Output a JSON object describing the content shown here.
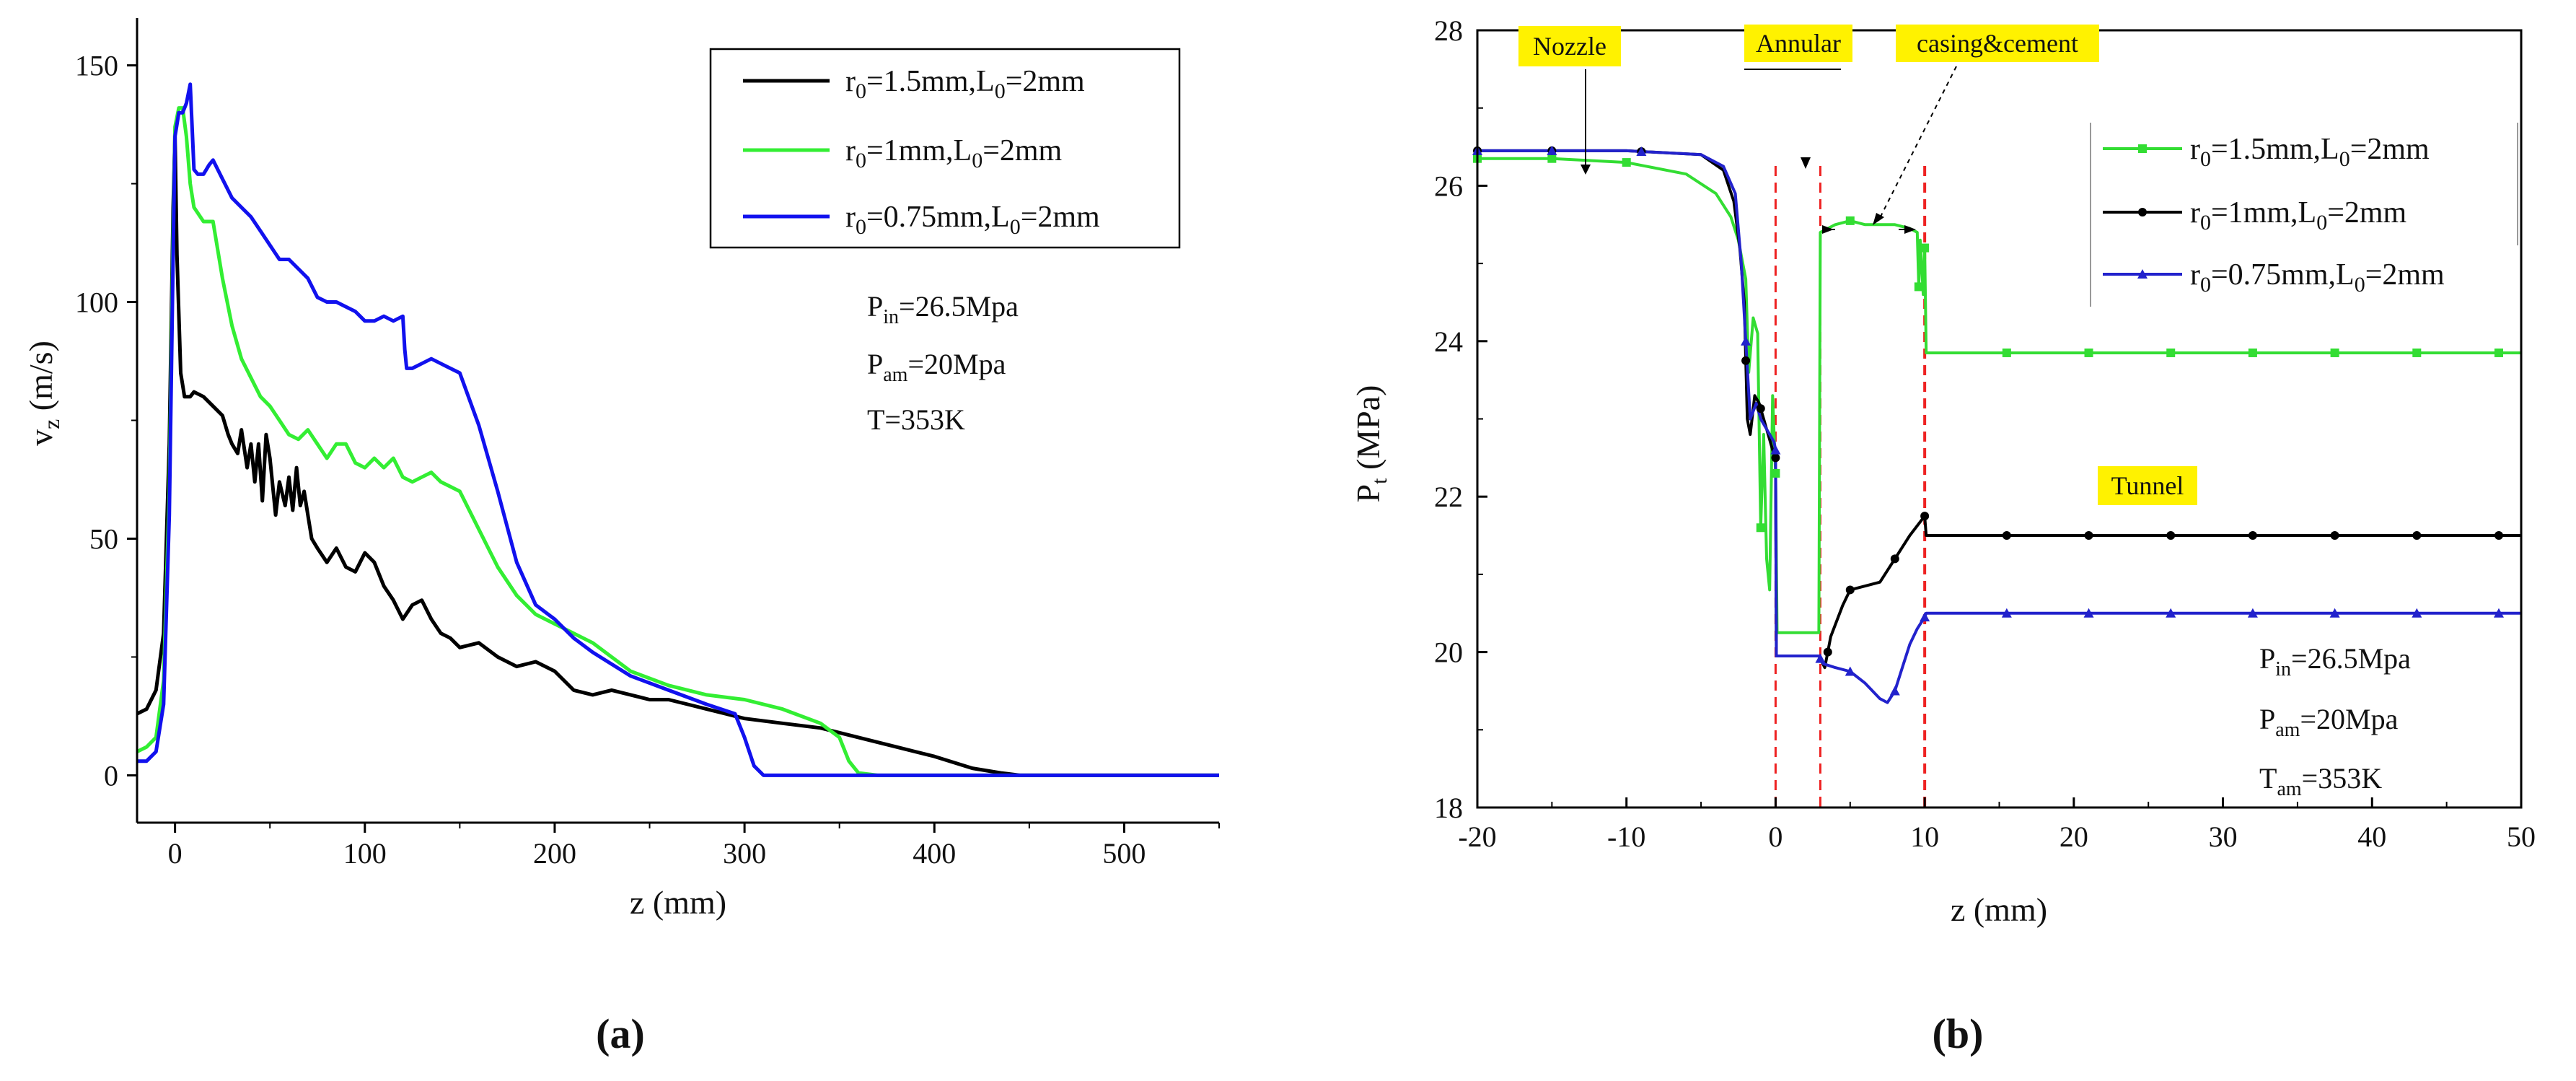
{
  "chart_data": [
    {
      "id": "a",
      "type": "line",
      "caption": "(a)",
      "xlabel": "z (mm)",
      "ylabel_main": "v",
      "ylabel_sub": "z",
      "ylabel_unit": " (m/s)",
      "xlim": [
        -20,
        550
      ],
      "ylim": [
        -10,
        160
      ],
      "xticks": [
        0,
        100,
        200,
        300,
        400,
        500
      ],
      "yticks": [
        0,
        50,
        100,
        150
      ],
      "legend_position": "top-right",
      "series": [
        {
          "name": "r0=1.5mm,L0=2mm",
          "color": "#000000",
          "legend": {
            "main": "r",
            "sub1": "0",
            "mid": "=1.5mm,L",
            "sub2": "0",
            "tail": "=2mm"
          },
          "x": [
            -20,
            -15,
            -10,
            -6,
            -3,
            -1,
            0,
            1,
            3,
            5,
            8,
            10,
            15,
            20,
            25,
            28,
            30,
            33,
            35,
            38,
            40,
            42,
            44,
            46,
            48,
            50,
            53,
            55,
            58,
            60,
            62,
            64,
            66,
            68,
            70,
            72,
            75,
            80,
            85,
            90,
            95,
            100,
            105,
            110,
            115,
            120,
            125,
            130,
            135,
            140,
            145,
            150,
            160,
            170,
            180,
            190,
            200,
            210,
            220,
            230,
            240,
            250,
            260,
            270,
            280,
            290,
            300,
            320,
            340,
            360,
            380,
            400,
            420,
            435,
            445,
            455,
            480,
            520,
            550
          ],
          "y": [
            13,
            14,
            18,
            30,
            70,
            120,
            135,
            110,
            85,
            80,
            80,
            81,
            80,
            78,
            76,
            72,
            70,
            68,
            73,
            65,
            70,
            62,
            70,
            58,
            72,
            67,
            55,
            62,
            57,
            63,
            56,
            65,
            57,
            60,
            55,
            50,
            48,
            45,
            48,
            44,
            43,
            47,
            45,
            40,
            37,
            33,
            36,
            37,
            33,
            30,
            29,
            27,
            28,
            25,
            23,
            24,
            22,
            18,
            17,
            18,
            17,
            16,
            16,
            15,
            14,
            13,
            12,
            11,
            10,
            8,
            6,
            4,
            1.5,
            0.5,
            0,
            0,
            0,
            0,
            0
          ]
        },
        {
          "name": "r0=1mm,L0=2mm",
          "color": "#33EE33",
          "legend": {
            "main": "r",
            "sub1": "0",
            "mid": "=1mm,L",
            "sub2": "0",
            "tail": "=2mm"
          },
          "x": [
            -20,
            -15,
            -10,
            -6,
            -3,
            -1,
            0,
            2,
            4,
            6,
            8,
            10,
            15,
            20,
            25,
            30,
            35,
            40,
            45,
            50,
            55,
            60,
            65,
            70,
            75,
            80,
            85,
            90,
            95,
            100,
            105,
            110,
            115,
            120,
            125,
            130,
            135,
            140,
            145,
            150,
            160,
            170,
            180,
            190,
            200,
            220,
            240,
            260,
            280,
            300,
            320,
            340,
            350,
            355,
            360,
            370,
            400,
            450,
            500,
            550
          ],
          "y": [
            5,
            6,
            8,
            20,
            60,
            115,
            137,
            141,
            141,
            135,
            125,
            120,
            117,
            117,
            105,
            95,
            88,
            84,
            80,
            78,
            75,
            72,
            71,
            73,
            70,
            67,
            70,
            70,
            66,
            65,
            67,
            65,
            67,
            63,
            62,
            63,
            64,
            62,
            61,
            60,
            52,
            44,
            38,
            34,
            32,
            28,
            22,
            19,
            17,
            16,
            14,
            11,
            8,
            3,
            0.5,
            0,
            0,
            0,
            0,
            0
          ]
        },
        {
          "name": "r0=0.75mm,L0=2mm",
          "color": "#1111EE",
          "legend": {
            "main": "r",
            "sub1": "0",
            "mid": "=0.75mm,L",
            "sub2": "0",
            "tail": "=2mm"
          },
          "x": [
            -20,
            -15,
            -10,
            -6,
            -3,
            -1,
            0,
            2,
            4,
            6,
            8,
            10,
            12,
            15,
            18,
            20,
            25,
            30,
            35,
            40,
            45,
            50,
            55,
            60,
            65,
            70,
            75,
            80,
            85,
            90,
            95,
            100,
            105,
            110,
            115,
            120,
            121,
            122,
            125,
            130,
            135,
            140,
            145,
            150,
            160,
            170,
            180,
            190,
            200,
            210,
            220,
            240,
            260,
            280,
            295,
            300,
            305,
            310,
            330,
            400,
            500,
            550
          ],
          "y": [
            3,
            3,
            5,
            15,
            55,
            110,
            135,
            140,
            140,
            142,
            146,
            128,
            127,
            127,
            129,
            130,
            126,
            122,
            120,
            118,
            115,
            112,
            109,
            109,
            107,
            105,
            101,
            100,
            100,
            99,
            98,
            96,
            96,
            97,
            96,
            97,
            90,
            86,
            86,
            87,
            88,
            87,
            86,
            85,
            74,
            60,
            45,
            36,
            33,
            29,
            26,
            21,
            18,
            15,
            13,
            8,
            2,
            0,
            0,
            0,
            0,
            0
          ]
        }
      ],
      "annotations": [
        {
          "main": "P",
          "sub": "in",
          "tail": "=26.5Mpa"
        },
        {
          "main": "P",
          "sub": "am",
          "tail": "=20Mpa"
        },
        {
          "main": "T=353K",
          "sub": "",
          "tail": ""
        }
      ]
    },
    {
      "id": "b",
      "type": "line",
      "caption": "(b)",
      "xlabel": "z (mm)",
      "ylabel_main": "P",
      "ylabel_sub": "t",
      "ylabel_unit": " (MPa)",
      "xlim": [
        -20,
        50
      ],
      "ylim": [
        18,
        28
      ],
      "xticks": [
        -20,
        -10,
        0,
        10,
        20,
        30,
        40,
        50
      ],
      "yticks": [
        18,
        20,
        22,
        24,
        26,
        28
      ],
      "legend_position": "top-right",
      "vlines": [
        0,
        3,
        10
      ],
      "series": [
        {
          "name": "r0=1.5mm,L0=2mm",
          "color": "#33DD33",
          "marker": "square",
          "legend": {
            "main": "r",
            "sub1": "0",
            "mid": "=1.5mm,L",
            "sub2": "0",
            "tail": "=2mm"
          },
          "x": [
            -20,
            -15,
            -10,
            -6,
            -4,
            -3,
            -2.5,
            -2,
            -1.8,
            -1.5,
            -1.2,
            -1,
            -0.8,
            -0.6,
            -0.4,
            -0.2,
            0,
            0.1,
            1,
            2,
            2.9,
            3,
            4,
            5,
            6,
            7,
            8,
            9,
            9.5,
            9.6,
            9.7,
            9.9,
            10,
            10.1,
            15,
            20,
            30,
            40,
            50
          ],
          "y": [
            26.35,
            26.35,
            26.3,
            26.15,
            25.9,
            25.6,
            25.3,
            24.8,
            23.6,
            24.3,
            24.1,
            21.6,
            22.8,
            21.2,
            20.8,
            23.3,
            22.3,
            20.25,
            20.25,
            20.25,
            20.25,
            25.4,
            25.5,
            25.55,
            25.5,
            25.5,
            25.5,
            25.45,
            25.4,
            24.7,
            25.3,
            24.6,
            25.2,
            23.85,
            23.85,
            23.85,
            23.85,
            23.85,
            23.85
          ],
          "marker_x": [
            -20,
            -15,
            -10,
            -1,
            0,
            5,
            9.6,
            10,
            15.5,
            21,
            26.5,
            32,
            37.5,
            43,
            48.5
          ]
        },
        {
          "name": "r0=1mm,L0=2mm",
          "color": "#000000",
          "marker": "circle",
          "legend": {
            "main": "r",
            "sub1": "0",
            "mid": "=1mm,L",
            "sub2": "0",
            "tail": "=2mm"
          },
          "x": [
            -20,
            -15,
            -10,
            -5,
            -3.5,
            -2.8,
            -2.4,
            -2.1,
            -1.9,
            -1.7,
            -1.4,
            -1.1,
            -0.8,
            -0.5,
            -0.2,
            0,
            0.05,
            1,
            2.9,
            3.3,
            3.7,
            4.5,
            5,
            6,
            7,
            8,
            9,
            10,
            10.1,
            15,
            20,
            30,
            40,
            50
          ],
          "y": [
            26.45,
            26.45,
            26.45,
            26.4,
            26.2,
            25.8,
            25.2,
            24.5,
            23.0,
            22.8,
            23.3,
            23.2,
            23.0,
            22.8,
            22.6,
            22.5,
            19.95,
            19.95,
            19.95,
            19.8,
            20.2,
            20.6,
            20.8,
            20.85,
            20.9,
            21.2,
            21.5,
            21.75,
            21.5,
            21.5,
            21.5,
            21.5,
            21.5,
            21.5
          ],
          "marker_x": [
            -20,
            -15,
            -9,
            -2,
            -1,
            0,
            3.5,
            5,
            8,
            10,
            15.5,
            21,
            26.5,
            32,
            37.5,
            43,
            48.5
          ]
        },
        {
          "name": "r0=0.75mm,L0=2mm",
          "color": "#2222CC",
          "marker": "triangle",
          "legend": {
            "main": "r",
            "sub1": "0",
            "mid": "=0.75mm,L",
            "sub2": "0",
            "tail": "=2mm"
          },
          "x": [
            -20,
            -15,
            -10,
            -5,
            -3.5,
            -2.7,
            -2.3,
            -2.0,
            -1.7,
            -1.3,
            -1.0,
            -0.7,
            -0.4,
            -0.1,
            0,
            0.05,
            1,
            2.9,
            3.2,
            4,
            5,
            6,
            7,
            7.5,
            8,
            8.5,
            9,
            9.5,
            10,
            10.1,
            15,
            20,
            30,
            40,
            50
          ],
          "y": [
            26.45,
            26.45,
            26.45,
            26.4,
            26.25,
            25.9,
            25.0,
            24.0,
            23.0,
            23.2,
            23.0,
            22.9,
            22.8,
            22.7,
            22.6,
            19.95,
            19.95,
            19.95,
            19.85,
            19.8,
            19.75,
            19.6,
            19.4,
            19.35,
            19.5,
            19.8,
            20.1,
            20.3,
            20.45,
            20.5,
            20.5,
            20.5,
            20.5,
            20.5,
            20.5
          ],
          "marker_x": [
            -20,
            -15,
            -9,
            -2,
            0,
            3,
            5,
            8,
            10,
            15.5,
            21,
            26.5,
            32,
            37.5,
            43,
            48.5
          ]
        }
      ],
      "labels": [
        {
          "text": "Nozzle",
          "pos": "top-left",
          "arrow_to_x": -12.5
        },
        {
          "text": "Annular",
          "pos": "top-center"
        },
        {
          "text": "casing&cement",
          "pos": "top-center-right"
        },
        {
          "text": "Tunnel",
          "pos": "middle-right"
        }
      ],
      "annotations": [
        {
          "main": "P",
          "sub": "in",
          "tail": "=26.5Mpa"
        },
        {
          "main": "P",
          "sub": "am",
          "tail": "=20Mpa"
        },
        {
          "main": "T",
          "sub": "am",
          "tail": "=353K"
        }
      ]
    }
  ]
}
